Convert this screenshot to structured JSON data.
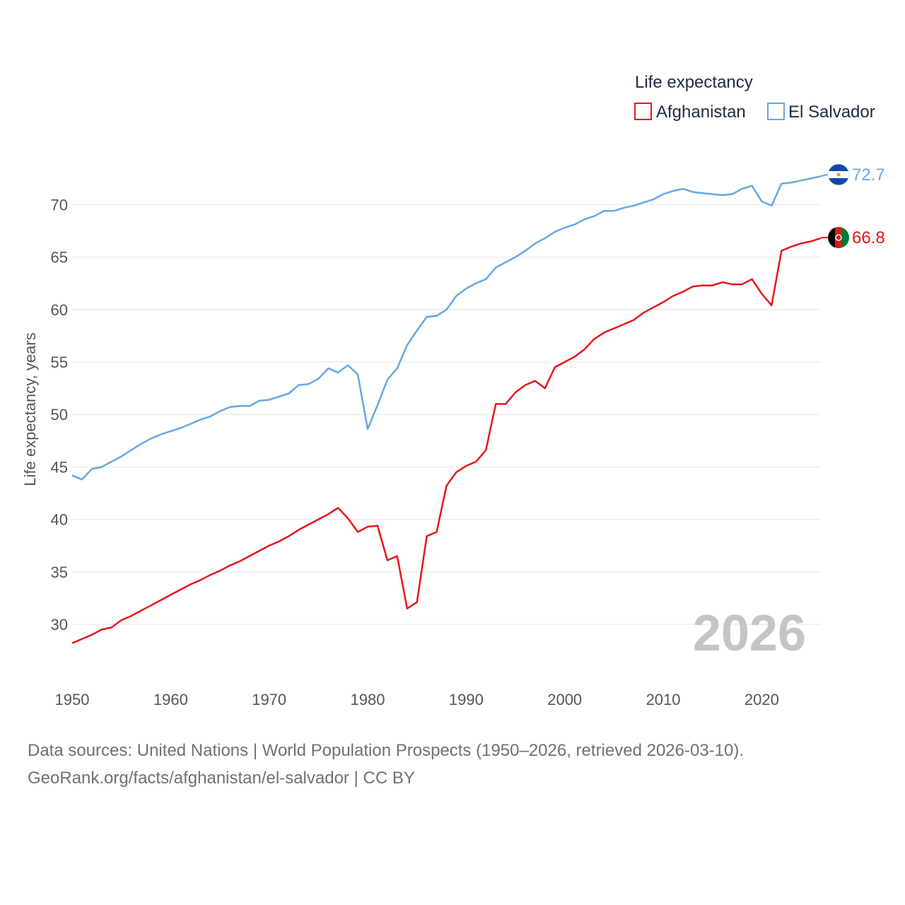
{
  "chart_data": {
    "type": "line",
    "title": "",
    "legend_title": "Life expectancy",
    "ylabel": "Life expectancy, years",
    "xlabel": "",
    "xlim": [
      1950,
      2026
    ],
    "ylim": [
      27,
      75
    ],
    "x_ticks": [
      "1950",
      "1960",
      "1970",
      "1980",
      "1990",
      "2000",
      "2010",
      "2020"
    ],
    "y_ticks": [
      "30",
      "35",
      "40",
      "45",
      "50",
      "55",
      "60",
      "65",
      "70"
    ],
    "year_watermark": "2026",
    "series": [
      {
        "name": "Afghanistan",
        "color": "#e8161b",
        "end_label": "66.8",
        "flag": "afghanistan-flag",
        "x": [
          1950,
          1951,
          1952,
          1953,
          1954,
          1955,
          1956,
          1957,
          1958,
          1959,
          1960,
          1961,
          1962,
          1963,
          1964,
          1965,
          1966,
          1967,
          1968,
          1969,
          1970,
          1971,
          1972,
          1973,
          1974,
          1975,
          1976,
          1977,
          1978,
          1979,
          1980,
          1981,
          1982,
          1983,
          1984,
          1985,
          1986,
          1987,
          1988,
          1989,
          1990,
          1991,
          1992,
          1993,
          1994,
          1995,
          1996,
          1997,
          1998,
          1999,
          2000,
          2001,
          2002,
          2003,
          2004,
          2005,
          2006,
          2007,
          2008,
          2009,
          2010,
          2011,
          2012,
          2013,
          2014,
          2015,
          2016,
          2017,
          2018,
          2019,
          2020,
          2021,
          2022,
          2023,
          2024,
          2025,
          2026
        ],
        "values": [
          28.2,
          28.6,
          29.0,
          29.5,
          29.7,
          30.4,
          30.8,
          31.3,
          31.8,
          32.3,
          32.8,
          33.3,
          33.8,
          34.2,
          34.7,
          35.1,
          35.6,
          36.0,
          36.5,
          37.0,
          37.5,
          37.9,
          38.4,
          39.0,
          39.5,
          40.0,
          40.5,
          41.1,
          40.1,
          38.8,
          39.3,
          39.4,
          36.1,
          36.5,
          31.5,
          32.1,
          38.4,
          38.8,
          43.2,
          44.5,
          45.1,
          45.5,
          46.6,
          51.0,
          51.0,
          52.1,
          52.8,
          53.2,
          52.5,
          54.5,
          55.0,
          55.5,
          56.2,
          57.2,
          57.8,
          58.2,
          58.6,
          59.0,
          59.7,
          60.2,
          60.7,
          61.3,
          61.7,
          62.2,
          62.3,
          62.3,
          62.6,
          62.4,
          62.4,
          62.9,
          61.5,
          60.4,
          65.6,
          66.0,
          66.3,
          66.5,
          66.8
        ]
      },
      {
        "name": "El Salvador",
        "color": "#64a8e6",
        "end_label": "72.7",
        "flag": "el-salvador-flag",
        "x": [
          1950,
          1951,
          1952,
          1953,
          1954,
          1955,
          1956,
          1957,
          1958,
          1959,
          1960,
          1961,
          1962,
          1963,
          1964,
          1965,
          1966,
          1967,
          1968,
          1969,
          1970,
          1971,
          1972,
          1973,
          1974,
          1975,
          1976,
          1977,
          1978,
          1979,
          1980,
          1981,
          1982,
          1983,
          1984,
          1985,
          1986,
          1987,
          1988,
          1989,
          1990,
          1991,
          1992,
          1993,
          1994,
          1995,
          1996,
          1997,
          1998,
          1999,
          2000,
          2001,
          2002,
          2003,
          2004,
          2005,
          2006,
          2007,
          2008,
          2009,
          2010,
          2011,
          2012,
          2013,
          2014,
          2015,
          2016,
          2017,
          2018,
          2019,
          2020,
          2021,
          2022,
          2023,
          2024,
          2025,
          2026
        ],
        "values": [
          44.2,
          43.8,
          44.8,
          45.0,
          45.5,
          46.0,
          46.6,
          47.2,
          47.7,
          48.1,
          48.4,
          48.7,
          49.1,
          49.5,
          49.8,
          50.3,
          50.7,
          50.8,
          50.8,
          51.3,
          51.4,
          51.7,
          52.0,
          52.8,
          52.9,
          53.4,
          54.4,
          54.0,
          54.7,
          53.8,
          48.6,
          50.9,
          53.3,
          54.4,
          56.6,
          58.0,
          59.3,
          59.4,
          60.0,
          61.3,
          62.0,
          62.5,
          62.9,
          64.0,
          64.5,
          65.0,
          65.6,
          66.3,
          66.8,
          67.4,
          67.8,
          68.1,
          68.6,
          68.9,
          69.4,
          69.4,
          69.7,
          69.9,
          70.2,
          70.5,
          71.0,
          71.3,
          71.5,
          71.2,
          71.1,
          71.0,
          70.9,
          71.0,
          71.5,
          71.8,
          70.3,
          69.9,
          72.0,
          72.1,
          72.3,
          72.5,
          72.7
        ]
      }
    ]
  },
  "source": {
    "line1": "Data sources: United Nations | World Population Prospects (1950–2026, retrieved 2026-03-10).",
    "line2": "GeoRank.org/facts/afghanistan/el-salvador | CC BY"
  }
}
